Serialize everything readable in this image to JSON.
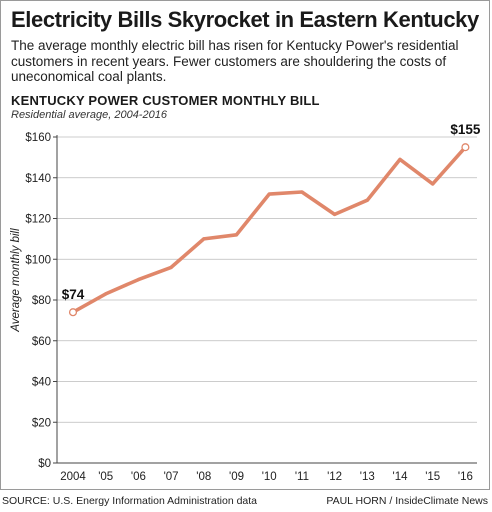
{
  "headline": "Electricity Bills Skyrocket in Eastern Kentucky",
  "dek": "The average monthly electric bill has risen for Kentucky Power's residential customers in recent years. Fewer customers are shouldering the costs of uneconomical coal plants.",
  "source": "SOURCE: U.S. Energy Information Administration data",
  "credit": "PAUL HORN / InsideClimate News",
  "colors": {
    "line": "#e0876a",
    "axis": "#444444",
    "grid": "#bbbbbb"
  },
  "chart_data": {
    "type": "line",
    "title": "KENTUCKY POWER CUSTOMER MONTHLY BILL",
    "subtitle": "Residential average, 2004-2016",
    "ylabel": "Average monthly bill",
    "xlabel": "",
    "categories": [
      "2004",
      "'05",
      "'06",
      "'07",
      "'08",
      "'09",
      "'10",
      "'11",
      "'12",
      "'13",
      "'14",
      "'15",
      "'16"
    ],
    "values": [
      74,
      83,
      90,
      96,
      110,
      112,
      132,
      133,
      122,
      129,
      149,
      137,
      155
    ],
    "ylim": [
      0,
      160
    ],
    "yticks": [
      0,
      20,
      40,
      60,
      80,
      100,
      120,
      140,
      160
    ],
    "ytick_labels": [
      "$0",
      "$20",
      "$40",
      "$60",
      "$80",
      "$100",
      "$120",
      "$140",
      "$160"
    ],
    "annotations": [
      {
        "index": 0,
        "text": "$74"
      },
      {
        "index": 12,
        "text": "$155"
      }
    ],
    "grid": true
  }
}
